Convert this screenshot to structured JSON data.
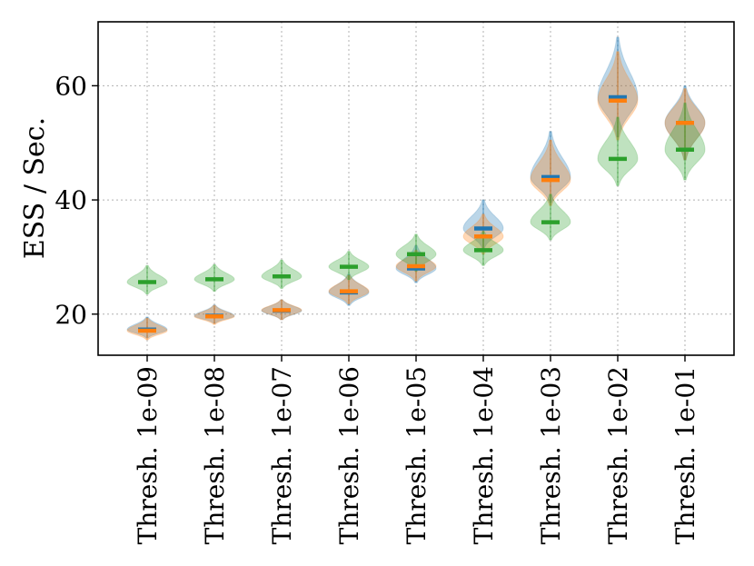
{
  "chart_data": {
    "type": "violin",
    "ylabel": "ESS / Sec.",
    "xlabel": "",
    "title": "",
    "ylim": [
      12.8,
      71.2
    ],
    "yticks": [
      20,
      40,
      60
    ],
    "grid": true,
    "categories": [
      "Thresh. 1e-09",
      "Thresh. 1e-08",
      "Thresh. 1e-07",
      "Thresh. 1e-06",
      "Thresh. 1e-05",
      "Thresh. 1e-04",
      "Thresh. 1e-03",
      "Thresh. 1e-02",
      "Thresh. 1e-01"
    ],
    "series": [
      {
        "color": "#1f77b4",
        "medians": [
          17.3,
          19.7,
          20.6,
          23.8,
          28.0,
          35.0,
          44.0,
          58.0,
          53.5
        ],
        "ranges": [
          [
            15.8,
            19.5
          ],
          [
            18.4,
            21.6
          ],
          [
            19.0,
            22.5
          ],
          [
            21.5,
            27.0
          ],
          [
            25.5,
            32.0
          ],
          [
            31.5,
            40.0
          ],
          [
            39.5,
            52.0
          ],
          [
            51.0,
            68.5
          ],
          [
            47.0,
            60.0
          ]
        ]
      },
      {
        "color": "#ff7f0e",
        "medians": [
          17.1,
          19.6,
          20.7,
          24.0,
          28.4,
          33.6,
          43.5,
          57.4,
          53.5
        ],
        "ranges": [
          [
            15.5,
            19.3
          ],
          [
            18.2,
            21.5
          ],
          [
            19.0,
            22.5
          ],
          [
            21.8,
            26.8
          ],
          [
            25.8,
            31.2
          ],
          [
            30.5,
            37.5
          ],
          [
            39.0,
            50.5
          ],
          [
            50.5,
            66.0
          ],
          [
            47.0,
            59.5
          ]
        ]
      },
      {
        "color": "#2ca02c",
        "medians": [
          25.6,
          26.1,
          26.6,
          28.3,
          30.5,
          31.2,
          36.1,
          47.2,
          48.8
        ],
        "ranges": [
          [
            23.5,
            28.5
          ],
          [
            24.0,
            28.7
          ],
          [
            24.5,
            29.5
          ],
          [
            26.0,
            31.0
          ],
          [
            27.5,
            34.0
          ],
          [
            28.5,
            34.5
          ],
          [
            33.0,
            41.0
          ],
          [
            42.5,
            54.5
          ],
          [
            43.5,
            57.0
          ]
        ]
      }
    ]
  }
}
